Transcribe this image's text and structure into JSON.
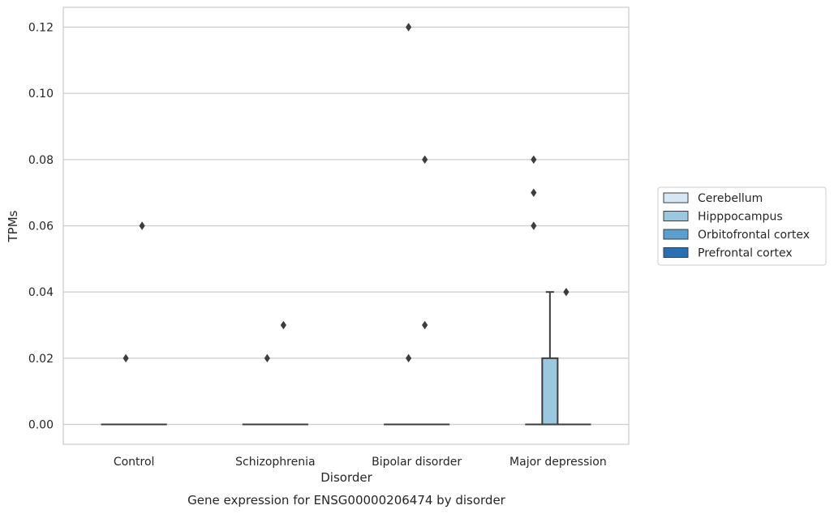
{
  "chart_data": {
    "type": "box",
    "xlabel": "Disorder",
    "ylabel": "TPMs",
    "caption": "Gene expression for ENSG00000206474 by disorder",
    "ylim": [
      -0.006,
      0.126
    ],
    "yticks": [
      "0.00",
      "0.02",
      "0.04",
      "0.06",
      "0.08",
      "0.10",
      "0.12"
    ],
    "categories": [
      "Control",
      "Schizophrenia",
      "Bipolar disorder",
      "Major depression"
    ],
    "grid": true,
    "legend_position": "right",
    "series": [
      {
        "name": "Cerebellum",
        "color": "#d6e6f4"
      },
      {
        "name": "Hipppocampus",
        "color": "#9ac8e0"
      },
      {
        "name": "Orbitofrontal cortex",
        "color": "#5a9fcf"
      },
      {
        "name": "Prefrontal cortex",
        "color": "#2a6fb0"
      }
    ],
    "boxes": [
      {
        "category": 0,
        "series": 0,
        "q1": 0,
        "median": 0,
        "q3": 0,
        "whisker_low": 0,
        "whisker_high": 0,
        "outliers": []
      },
      {
        "category": 0,
        "series": 1,
        "q1": 0,
        "median": 0,
        "q3": 0,
        "whisker_low": 0,
        "whisker_high": 0,
        "outliers": [
          0.02
        ]
      },
      {
        "category": 0,
        "series": 2,
        "q1": 0,
        "median": 0,
        "q3": 0,
        "whisker_low": 0,
        "whisker_high": 0,
        "outliers": [
          0.06
        ]
      },
      {
        "category": 0,
        "series": 3,
        "q1": 0,
        "median": 0,
        "q3": 0,
        "whisker_low": 0,
        "whisker_high": 0,
        "outliers": []
      },
      {
        "category": 1,
        "series": 0,
        "q1": 0,
        "median": 0,
        "q3": 0,
        "whisker_low": 0,
        "whisker_high": 0,
        "outliers": []
      },
      {
        "category": 1,
        "series": 1,
        "q1": 0,
        "median": 0,
        "q3": 0,
        "whisker_low": 0,
        "whisker_high": 0,
        "outliers": [
          0.02
        ]
      },
      {
        "category": 1,
        "series": 2,
        "q1": 0,
        "median": 0,
        "q3": 0,
        "whisker_low": 0,
        "whisker_high": 0,
        "outliers": [
          0.03
        ]
      },
      {
        "category": 1,
        "series": 3,
        "q1": 0,
        "median": 0,
        "q3": 0,
        "whisker_low": 0,
        "whisker_high": 0,
        "outliers": []
      },
      {
        "category": 2,
        "series": 0,
        "q1": 0,
        "median": 0,
        "q3": 0,
        "whisker_low": 0,
        "whisker_high": 0,
        "outliers": []
      },
      {
        "category": 2,
        "series": 1,
        "q1": 0,
        "median": 0,
        "q3": 0,
        "whisker_low": 0,
        "whisker_high": 0,
        "outliers": [
          0.02,
          0.12
        ]
      },
      {
        "category": 2,
        "series": 2,
        "q1": 0,
        "median": 0,
        "q3": 0,
        "whisker_low": 0,
        "whisker_high": 0,
        "outliers": [
          0.03,
          0.08
        ]
      },
      {
        "category": 2,
        "series": 3,
        "q1": 0,
        "median": 0,
        "q3": 0,
        "whisker_low": 0,
        "whisker_high": 0,
        "outliers": []
      },
      {
        "category": 3,
        "series": 0,
        "q1": 0,
        "median": 0,
        "q3": 0,
        "whisker_low": 0,
        "whisker_high": 0,
        "outliers": []
      },
      {
        "category": 3,
        "series": 1,
        "q1": 0,
        "median": 0,
        "q3": 0.02,
        "whisker_low": 0,
        "whisker_high": 0.04,
        "outliers": []
      },
      {
        "category": 3,
        "series": 2,
        "q1": 0,
        "median": 0,
        "q3": 0,
        "whisker_low": 0,
        "whisker_high": 0,
        "outliers": [
          0.04
        ]
      },
      {
        "category": 3,
        "series": 3,
        "q1": 0,
        "median": 0,
        "q3": 0,
        "whisker_low": 0,
        "whisker_high": 0,
        "outliers": []
      }
    ],
    "extra_outliers": [
      {
        "category": 3,
        "series": 0,
        "values": [
          0.06,
          0.07,
          0.08
        ]
      }
    ]
  }
}
